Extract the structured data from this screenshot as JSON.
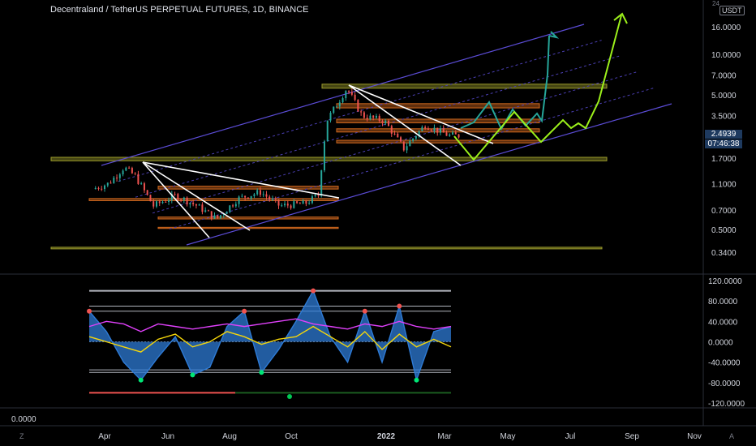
{
  "header": {
    "title": "Decentraland / TetherUS PERPETUAL FUTURES, 1D, BINANCE"
  },
  "price_axis": {
    "unit": "USDT",
    "countdown_hint": "24",
    "current_price": "2.4939",
    "countdown": "07:46:38"
  },
  "bottom_pane": {
    "value": "0.0000"
  },
  "footer": {
    "left_icon": "Z",
    "right_icon": "A"
  },
  "colors": {
    "background": "#000000",
    "channel": "#5b4cd6",
    "channel_inner": "#4b3fb3",
    "zone_orange": "#d2691e",
    "zone_olive": "#9b9b2b",
    "wedge_line": "#ffffff",
    "projection_teal": "#26a69a",
    "projection_lime": "#9cf01b",
    "up_candle": "#26a69a",
    "down_candle": "#ef5350",
    "osc_blue": "#2e7bd6",
    "osc_yellow": "#f5d60a",
    "osc_magenta": "#e040fb",
    "osc_green": "#4caf50",
    "osc_red": "#ef5350"
  },
  "chart_data": [
    {
      "type": "candlestick",
      "title": "Decentraland / TetherUS PERPETUAL FUTURES, 1D, BINANCE",
      "y_scale": "log",
      "y_ticks": [
        "16.0000",
        "10.0000",
        "7.0000",
        "5.0000",
        "3.5000",
        "2.4939",
        "1.7000",
        "1.1000",
        "0.7000",
        "0.5000",
        "0.3400"
      ],
      "x_ticks": [
        "Apr",
        "Jun",
        "Aug",
        "Oct",
        "2022",
        "Mar",
        "May",
        "Jul",
        "Sep",
        "Nov"
      ],
      "series": [
        {
          "name": "MANAUSDT close (approx.)",
          "x": [
            "2021-03-20",
            "2021-04-05",
            "2021-04-20",
            "2021-05-01",
            "2021-05-19",
            "2021-06-10",
            "2021-07-01",
            "2021-07-20",
            "2021-08-10",
            "2021-09-01",
            "2021-09-20",
            "2021-10-15",
            "2021-10-28",
            "2021-11-05",
            "2021-11-25",
            "2021-12-10",
            "2022-01-01",
            "2022-01-20",
            "2022-02-10",
            "2022-03-05",
            "2022-03-15"
          ],
          "values": [
            1.0,
            1.1,
            1.45,
            1.25,
            0.75,
            0.9,
            0.75,
            0.6,
            0.85,
            0.95,
            0.75,
            0.78,
            0.9,
            3.2,
            5.6,
            3.5,
            3.2,
            2.0,
            3.0,
            2.5,
            2.49
          ]
        }
      ],
      "annotations": [
        "rising parallel channel",
        "resistance / support zones",
        "falling wedge trendlines",
        "projected paths to about 16 and 24"
      ]
    },
    {
      "type": "line",
      "title": "",
      "y_ticks": [
        "120.0000",
        "80.0000",
        "40.0000",
        "0.0000",
        "-40.0000",
        "-80.0000",
        "-120.0000"
      ],
      "ylim": [
        -120,
        120
      ],
      "series": [
        {
          "name": "",
          "color": "blue",
          "values": [
            60,
            20,
            -40,
            -75,
            -30,
            10,
            -65,
            -50,
            30,
            60,
            -60,
            -15,
            40,
            100,
            10,
            -40,
            60,
            -40,
            70,
            -75,
            20,
            30
          ]
        },
        {
          "name": "",
          "color": "magenta",
          "values": [
            30,
            40,
            35,
            20,
            35,
            30,
            25,
            30,
            35,
            30,
            35,
            40,
            45,
            35,
            30,
            25,
            35,
            30,
            40,
            30,
            25,
            30
          ]
        },
        {
          "name": "",
          "color": "yellow",
          "values": [
            10,
            0,
            -10,
            -20,
            5,
            15,
            -10,
            0,
            20,
            10,
            -5,
            5,
            10,
            30,
            10,
            -10,
            20,
            -15,
            15,
            -10,
            5,
            -10
          ]
        }
      ]
    }
  ]
}
